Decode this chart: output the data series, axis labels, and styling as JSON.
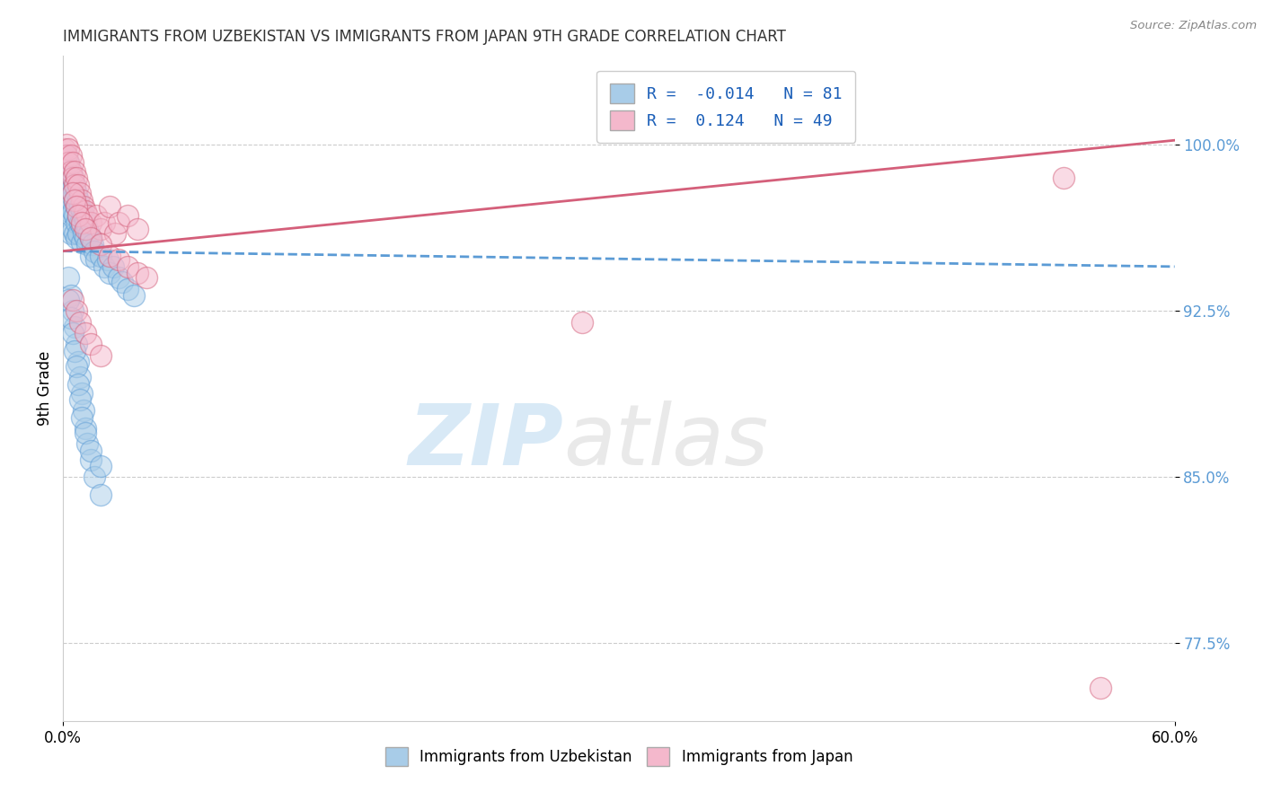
{
  "title": "IMMIGRANTS FROM UZBEKISTAN VS IMMIGRANTS FROM JAPAN 9TH GRADE CORRELATION CHART",
  "source": "Source: ZipAtlas.com",
  "ylabel": "9th Grade",
  "ytick_labels": [
    "77.5%",
    "85.0%",
    "92.5%",
    "100.0%"
  ],
  "ytick_values": [
    0.775,
    0.85,
    0.925,
    1.0
  ],
  "xlim": [
    0.0,
    0.6
  ],
  "ylim": [
    0.74,
    1.04
  ],
  "R_uzbekistan": -0.014,
  "N_uzbekistan": 81,
  "R_japan": 0.124,
  "N_japan": 49,
  "color_uzbekistan": "#a8cce8",
  "color_japan": "#f4b8cc",
  "trend_color_uzbekistan": "#5b9bd5",
  "trend_color_japan": "#d45f7a",
  "watermark_zip": "ZIP",
  "watermark_atlas": "atlas",
  "uzbekistan_x": [
    0.001,
    0.001,
    0.002,
    0.002,
    0.002,
    0.002,
    0.003,
    0.003,
    0.003,
    0.003,
    0.004,
    0.004,
    0.004,
    0.004,
    0.004,
    0.005,
    0.005,
    0.005,
    0.005,
    0.006,
    0.006,
    0.006,
    0.006,
    0.007,
    0.007,
    0.007,
    0.007,
    0.008,
    0.008,
    0.008,
    0.009,
    0.009,
    0.01,
    0.01,
    0.01,
    0.011,
    0.011,
    0.012,
    0.012,
    0.013,
    0.013,
    0.014,
    0.015,
    0.015,
    0.016,
    0.017,
    0.018,
    0.02,
    0.022,
    0.024,
    0.025,
    0.027,
    0.03,
    0.032,
    0.035,
    0.038,
    0.003,
    0.004,
    0.005,
    0.006,
    0.007,
    0.008,
    0.009,
    0.01,
    0.011,
    0.012,
    0.013,
    0.015,
    0.017,
    0.02,
    0.003,
    0.004,
    0.005,
    0.006,
    0.007,
    0.008,
    0.009,
    0.01,
    0.012,
    0.015,
    0.02
  ],
  "uzbekistan_y": [
    0.99,
    0.985,
    0.995,
    0.988,
    0.982,
    0.975,
    0.992,
    0.985,
    0.978,
    0.97,
    0.988,
    0.982,
    0.975,
    0.968,
    0.96,
    0.985,
    0.978,
    0.97,
    0.962,
    0.982,
    0.975,
    0.968,
    0.96,
    0.978,
    0.972,
    0.965,
    0.958,
    0.975,
    0.968,
    0.96,
    0.972,
    0.965,
    0.97,
    0.963,
    0.956,
    0.968,
    0.96,
    0.965,
    0.958,
    0.962,
    0.955,
    0.96,
    0.958,
    0.95,
    0.955,
    0.952,
    0.948,
    0.95,
    0.945,
    0.948,
    0.942,
    0.945,
    0.94,
    0.938,
    0.935,
    0.932,
    0.94,
    0.932,
    0.925,
    0.918,
    0.91,
    0.902,
    0.895,
    0.888,
    0.88,
    0.872,
    0.865,
    0.858,
    0.85,
    0.842,
    0.93,
    0.922,
    0.915,
    0.907,
    0.9,
    0.892,
    0.885,
    0.877,
    0.87,
    0.862,
    0.855
  ],
  "japan_x": [
    0.001,
    0.002,
    0.002,
    0.003,
    0.003,
    0.004,
    0.004,
    0.005,
    0.005,
    0.006,
    0.006,
    0.007,
    0.008,
    0.009,
    0.01,
    0.011,
    0.012,
    0.013,
    0.015,
    0.018,
    0.02,
    0.022,
    0.025,
    0.028,
    0.03,
    0.035,
    0.04,
    0.005,
    0.006,
    0.007,
    0.008,
    0.01,
    0.012,
    0.015,
    0.02,
    0.025,
    0.03,
    0.035,
    0.04,
    0.045,
    0.005,
    0.007,
    0.009,
    0.012,
    0.015,
    0.02,
    0.28,
    0.54,
    0.56
  ],
  "japan_y": [
    0.998,
    1.0,
    0.995,
    0.998,
    0.992,
    0.995,
    0.988,
    0.992,
    0.985,
    0.988,
    0.982,
    0.985,
    0.982,
    0.978,
    0.975,
    0.972,
    0.97,
    0.968,
    0.965,
    0.968,
    0.962,
    0.965,
    0.972,
    0.96,
    0.965,
    0.968,
    0.962,
    0.978,
    0.975,
    0.972,
    0.968,
    0.965,
    0.962,
    0.958,
    0.955,
    0.95,
    0.948,
    0.945,
    0.942,
    0.94,
    0.93,
    0.925,
    0.92,
    0.915,
    0.91,
    0.905,
    0.92,
    0.985,
    0.755
  ],
  "uzb_trend_x": [
    0.0,
    0.6
  ],
  "uzb_trend_y": [
    0.952,
    0.945
  ],
  "jpn_trend_x": [
    0.0,
    0.6
  ],
  "jpn_trend_y": [
    0.952,
    1.002
  ]
}
